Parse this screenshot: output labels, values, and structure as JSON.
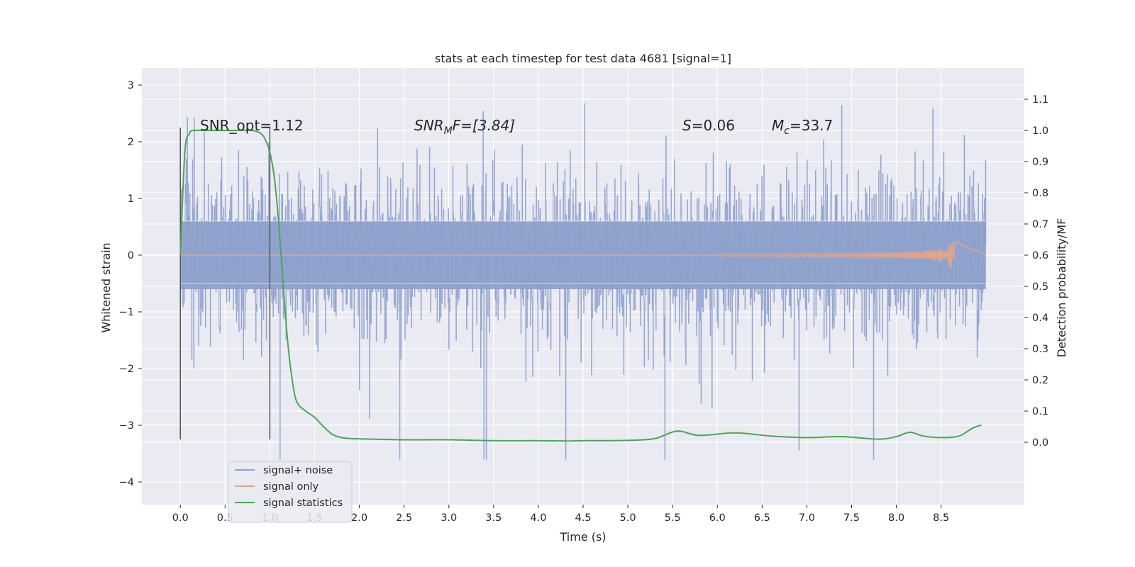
{
  "chart_data": {
    "type": "line",
    "title": "stats at each timestep for test data 4681 [signal=1]",
    "xlabel": "Time (s)",
    "ylabel_left": "Whitened strain",
    "ylabel_right": "Detection probability/MF",
    "xlim": [
      -0.43,
      9.43
    ],
    "ylim_left": [
      -4.4,
      3.3
    ],
    "ylim_right": [
      -0.2,
      1.2
    ],
    "x_ticks": [
      0.0,
      0.5,
      1.0,
      1.5,
      2.0,
      2.5,
      3.0,
      3.5,
      4.0,
      4.5,
      5.0,
      5.5,
      6.0,
      6.5,
      7.0,
      7.5,
      8.0,
      8.5
    ],
    "x_tick_labels": [
      "0.0",
      "0.5",
      "1.0",
      "1.5",
      "2.0",
      "2.5",
      "3.0",
      "3.5",
      "4.0",
      "4.5",
      "5.0",
      "5.5",
      "6.0",
      "6.5",
      "7.0",
      "7.5",
      "8.0",
      "8.5"
    ],
    "y_left_ticks": [
      3,
      2,
      1,
      0,
      -1,
      -2,
      -3,
      -4
    ],
    "y_left_tick_labels": [
      "3",
      "2",
      "1",
      "0",
      "−1",
      "−2",
      "−3",
      "−4"
    ],
    "y_right_ticks": [
      1.1,
      1.0,
      0.9,
      0.8,
      0.7,
      0.6,
      0.5,
      0.4,
      0.3,
      0.2,
      0.1,
      0.0
    ],
    "y_right_tick_labels": [
      "1.1",
      "1.0",
      "0.9",
      "0.8",
      "0.7",
      "0.6",
      "0.5",
      "0.4",
      "0.3",
      "0.2",
      "0.1",
      "0.0"
    ],
    "grid": true,
    "legend_position": "lower-left",
    "series": [
      {
        "name": "signal+ noise",
        "axis": "left",
        "color": "#8da0cb",
        "duration": 9.0,
        "typical_range": [
          -1.5,
          1.5
        ],
        "peak_max": 3.0,
        "peak_min": -3.6
      },
      {
        "name": "signal only",
        "axis": "left",
        "color": "#e5a48a",
        "duration": 9.0,
        "peak_time": 8.65,
        "peak_amplitude": 0.25
      },
      {
        "name": "signal statistics",
        "axis": "right",
        "color": "#4fa35a",
        "x": [
          0.0,
          0.05,
          0.1,
          0.15,
          0.25,
          0.4,
          0.6,
          0.8,
          0.9,
          0.95,
          1.0,
          1.05,
          1.1,
          1.15,
          1.2,
          1.25,
          1.3,
          1.4,
          1.5,
          1.6,
          1.7,
          1.8,
          1.9,
          2.0,
          2.5,
          3.0,
          3.5,
          4.0,
          4.3,
          4.5,
          5.0,
          5.3,
          5.5,
          5.6,
          5.8,
          6.2,
          6.6,
          7.0,
          7.4,
          7.8,
          8.0,
          8.15,
          8.3,
          8.5,
          8.7,
          8.85,
          8.95
        ],
        "y": [
          0.6,
          0.93,
          0.99,
          1.0,
          1.0,
          1.0,
          1.0,
          1.0,
          0.99,
          0.97,
          0.93,
          0.85,
          0.7,
          0.5,
          0.32,
          0.2,
          0.13,
          0.1,
          0.08,
          0.05,
          0.025,
          0.015,
          0.012,
          0.011,
          0.008,
          0.008,
          0.005,
          0.005,
          0.004,
          0.005,
          0.006,
          0.012,
          0.033,
          0.035,
          0.022,
          0.03,
          0.02,
          0.015,
          0.018,
          0.01,
          0.018,
          0.032,
          0.02,
          0.015,
          0.02,
          0.045,
          0.055
        ]
      }
    ],
    "markers": [
      {
        "x": 0.0,
        "y_left": [
          -3.25,
          2.25
        ],
        "color": "#555555"
      },
      {
        "x": 1.0,
        "y_left": [
          -3.25,
          2.25
        ],
        "color": "#555555"
      }
    ],
    "annotations": [
      {
        "text": "SNR_opt=1.12",
        "x": 0.2,
        "y_left": 2.15
      },
      {
        "text": "SNR_MF=[3.84]",
        "x": 2.6,
        "y_left": 2.15
      },
      {
        "text": "S=0.06",
        "x": 5.6,
        "y_left": 2.15
      },
      {
        "text": "M_c=33.7",
        "x": 6.6,
        "y_left": 2.15
      }
    ]
  },
  "annotations": {
    "snr_opt": "SNR_opt=1.12",
    "snr_mf_base": "SNR",
    "snr_mf_sub": "M",
    "snr_mf_rest": "F=[3.84]",
    "s_italic": "S",
    "s_rest": "=0.06",
    "mc_italic": "M",
    "mc_sub": "c",
    "mc_rest": "=33.7"
  },
  "legend": {
    "items": [
      "signal+ noise",
      "signal only",
      "signal statistics"
    ]
  }
}
